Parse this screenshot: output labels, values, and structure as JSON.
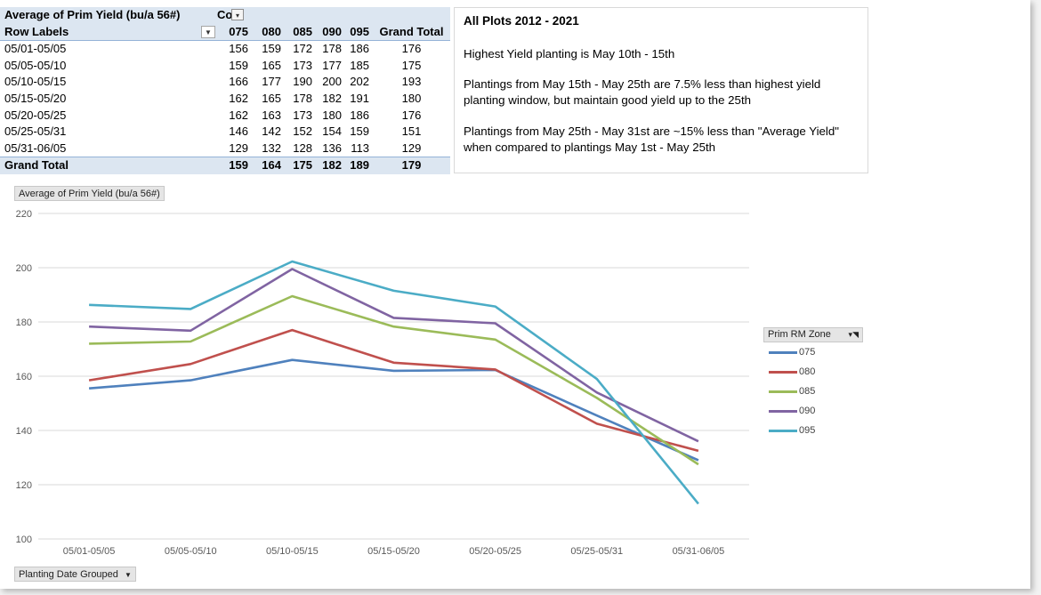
{
  "pivot": {
    "measure_header": "Average of Prim Yield (bu/a 56#)",
    "col_header": "Col",
    "row_labels_header": "Row Labels",
    "columns": [
      "075",
      "080",
      "085",
      "090",
      "095"
    ],
    "grand_total_header": "Grand Total",
    "rows": [
      {
        "label": "05/01-05/05",
        "v075": "156",
        "v080": "159",
        "v085": "172",
        "v090": "178",
        "v095": "186",
        "gt": "176"
      },
      {
        "label": "05/05-05/10",
        "v075": "159",
        "v080": "165",
        "v085": "173",
        "v090": "177",
        "v095": "185",
        "gt": "175"
      },
      {
        "label": "05/10-05/15",
        "v075": "166",
        "v080": "177",
        "v085": "190",
        "v090": "200",
        "v095": "202",
        "gt": "193"
      },
      {
        "label": "05/15-05/20",
        "v075": "162",
        "v080": "165",
        "v085": "178",
        "v090": "182",
        "v095": "191",
        "gt": "180"
      },
      {
        "label": "05/20-05/25",
        "v075": "162",
        "v080": "163",
        "v085": "173",
        "v090": "180",
        "v095": "186",
        "gt": "176"
      },
      {
        "label": "05/25-05/31",
        "v075": "146",
        "v080": "142",
        "v085": "152",
        "v090": "154",
        "v095": "159",
        "gt": "151"
      },
      {
        "label": "05/31-06/05",
        "v075": "129",
        "v080": "132",
        "v085": "128",
        "v090": "136",
        "v095": "113",
        "gt": "129"
      }
    ],
    "total": {
      "label": "Grand Total",
      "v075": "159",
      "v080": "164",
      "v085": "175",
      "v090": "182",
      "v095": "189",
      "gt": "179"
    }
  },
  "notes": {
    "title": "All Plots 2012 - 2021",
    "line1": "Highest Yield planting is May 10th - 15th",
    "line2": "Plantings from May 15th - May 25th are 7.5% less than highest yield planting window, but maintain good yield up to the 25th",
    "line3": "Plantings from May 25th - May 31st are ~15% less than \"Average Yield\" when compared to plantings May 1st - May 25th"
  },
  "chart_data": {
    "type": "line",
    "value_field_button": "Average of Prim Yield (bu/a 56#)",
    "axis_field_button": "Planting Date Grouped",
    "legend_title": "Prim RM Zone",
    "categories": [
      "05/01-05/05",
      "05/05-05/10",
      "05/10-05/15",
      "05/15-05/20",
      "05/20-05/25",
      "05/25-05/31",
      "05/31-06/05"
    ],
    "ylim": [
      100,
      220
    ],
    "yticks": [
      "100",
      "120",
      "140",
      "160",
      "180",
      "200",
      "220"
    ],
    "series": [
      {
        "name": "075",
        "color": "#4f81bd",
        "values": [
          155.5,
          158.5,
          166,
          162,
          162.3,
          145.5,
          129
        ]
      },
      {
        "name": "080",
        "color": "#c0504d",
        "values": [
          158.5,
          164.5,
          177,
          165,
          162.5,
          142.5,
          132.5
        ]
      },
      {
        "name": "085",
        "color": "#9bbb59",
        "values": [
          172,
          172.8,
          189.5,
          178.3,
          173.5,
          152,
          127.5
        ]
      },
      {
        "name": "090",
        "color": "#8064a2",
        "values": [
          178.3,
          176.8,
          199.5,
          181.5,
          179.5,
          154,
          136
        ]
      },
      {
        "name": "095",
        "color": "#4bacc6",
        "values": [
          186.3,
          184.8,
          202.3,
          191.5,
          185.7,
          159,
          113
        ]
      }
    ]
  }
}
